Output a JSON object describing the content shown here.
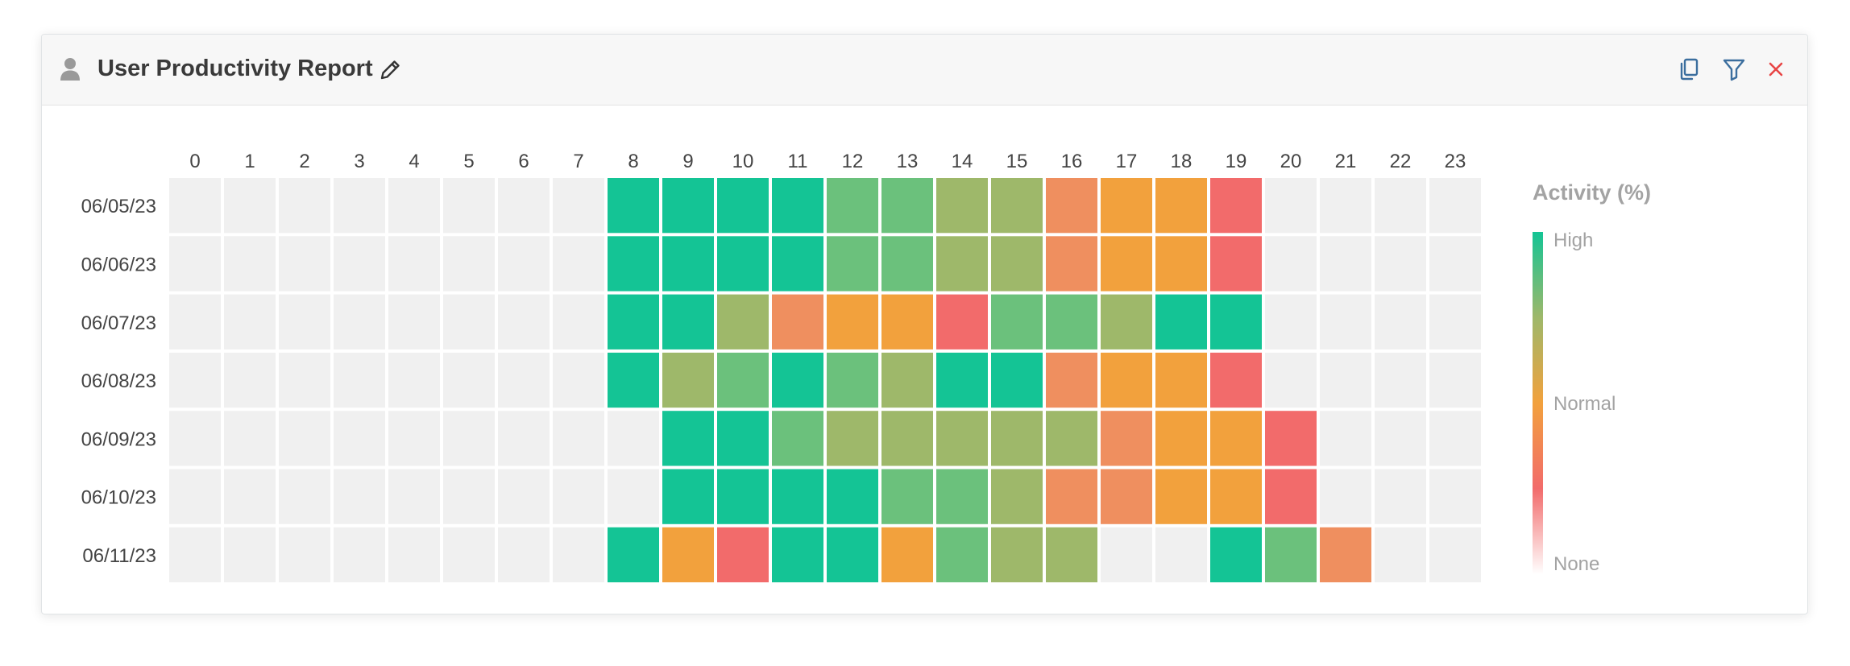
{
  "widget": {
    "title": "User Productivity Report",
    "icons": {
      "user": "user-icon",
      "edit": "pencil-icon",
      "copy": "copy-icon",
      "filter": "filter-icon",
      "close": "close-icon"
    },
    "colors": {
      "action_icon": "#3b6e9e",
      "close_icon": "#e84545",
      "empty_cell": "#f0f0f0"
    }
  },
  "chart_data": {
    "type": "heatmap",
    "title": "",
    "x": [
      "0",
      "1",
      "2",
      "3",
      "4",
      "5",
      "6",
      "7",
      "8",
      "9",
      "10",
      "11",
      "12",
      "13",
      "14",
      "15",
      "16",
      "17",
      "18",
      "19",
      "20",
      "21",
      "22",
      "23"
    ],
    "y": [
      "06/05/23",
      "06/06/23",
      "06/07/23",
      "06/08/23",
      "06/09/23",
      "06/10/23",
      "06/11/23"
    ],
    "values": [
      [
        0,
        0,
        0,
        0,
        0,
        0,
        0,
        0,
        100,
        100,
        100,
        100,
        85,
        85,
        70,
        70,
        45,
        55,
        55,
        35,
        0,
        0,
        0,
        0
      ],
      [
        0,
        0,
        0,
        0,
        0,
        0,
        0,
        0,
        100,
        100,
        100,
        100,
        85,
        85,
        70,
        70,
        45,
        55,
        55,
        35,
        0,
        0,
        0,
        0
      ],
      [
        0,
        0,
        0,
        0,
        0,
        0,
        0,
        0,
        100,
        100,
        70,
        45,
        55,
        55,
        35,
        85,
        85,
        70,
        100,
        100,
        0,
        0,
        0,
        0
      ],
      [
        0,
        0,
        0,
        0,
        0,
        0,
        0,
        0,
        100,
        70,
        85,
        100,
        85,
        70,
        100,
        100,
        45,
        55,
        55,
        35,
        0,
        0,
        0,
        0
      ],
      [
        0,
        0,
        0,
        0,
        0,
        0,
        0,
        0,
        0,
        100,
        100,
        85,
        70,
        70,
        70,
        70,
        70,
        45,
        55,
        55,
        35,
        0,
        0,
        0
      ],
      [
        0,
        0,
        0,
        0,
        0,
        0,
        0,
        0,
        0,
        100,
        100,
        100,
        100,
        85,
        85,
        70,
        45,
        45,
        55,
        55,
        35,
        0,
        0,
        0
      ],
      [
        0,
        0,
        0,
        0,
        0,
        0,
        0,
        0,
        100,
        55,
        35,
        100,
        100,
        55,
        85,
        70,
        70,
        0,
        0,
        100,
        85,
        45,
        0,
        0
      ]
    ],
    "color_scale": [
      {
        "value": 0,
        "color": "#f0f0f0"
      },
      {
        "value": 35,
        "color": "#f26b6b"
      },
      {
        "value": 45,
        "color": "#ef8f5f"
      },
      {
        "value": 55,
        "color": "#f2a13d"
      },
      {
        "value": 70,
        "color": "#9eb86a"
      },
      {
        "value": 85,
        "color": "#6bc17c"
      },
      {
        "value": 100,
        "color": "#14c495"
      }
    ],
    "legend": {
      "title": "Activity (%)",
      "position": "right",
      "labels": [
        "High",
        "Normal",
        "None"
      ],
      "gradient": [
        "#14c495",
        "#9eb86a",
        "#f2a13d",
        "#f26b6b",
        "#ffffff"
      ]
    },
    "grid": false
  }
}
